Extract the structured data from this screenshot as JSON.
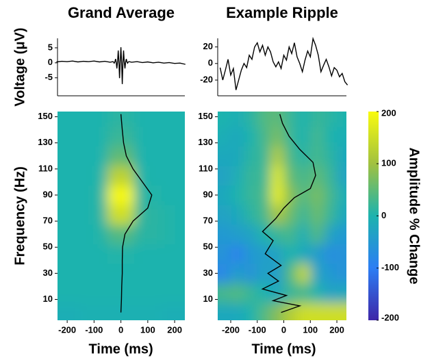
{
  "chart_data": [
    {
      "type": "line",
      "title": "Grand Average",
      "ylabel": "Voltage (μV)",
      "color": "#000000",
      "xlim": [
        -236,
        238
      ],
      "ylim": [
        -11,
        10
      ],
      "yticks": [
        -5,
        0,
        5
      ],
      "x": [
        -240,
        -220,
        -200,
        -180,
        -160,
        -140,
        -120,
        -100,
        -80,
        -60,
        -40,
        -30,
        -27.5,
        -25,
        -22.5,
        -20,
        -17.5,
        -15,
        -12.5,
        -10,
        -7.5,
        -5,
        -2.5,
        0,
        2.5,
        5,
        7.5,
        10,
        12.5,
        15,
        17.5,
        20,
        22.5,
        25,
        27.5,
        30,
        40,
        60,
        80,
        100,
        120,
        140,
        160,
        180,
        200,
        220,
        240
      ],
      "values": [
        0.3,
        0.5,
        0.4,
        0.6,
        0.3,
        0.5,
        0.4,
        0.6,
        0.3,
        0.5,
        0.2,
        0.4,
        0.3,
        -0.1,
        0.3,
        1.3,
        0.3,
        -1.9,
        0.3,
        4.1,
        0.3,
        -5.1,
        0.3,
        5.2,
        0.3,
        -7.1,
        0.3,
        4.1,
        0.3,
        -1.9,
        0.3,
        1.3,
        0.3,
        -0.1,
        0.3,
        0.4,
        0.2,
        0.4,
        0.1,
        0.3,
        0.0,
        0.2,
        -0.1,
        0.1,
        -0.2,
        -0.1,
        -0.5
      ]
    },
    {
      "type": "line",
      "title": "Example Ripple",
      "color": "#000000",
      "xlim": [
        -249,
        236
      ],
      "ylim": [
        -39,
        37
      ],
      "yticks": [
        -20,
        0,
        20
      ],
      "x": [
        -240,
        -230,
        -220,
        -210,
        -200,
        -190,
        -180,
        -170,
        -160,
        -150,
        -140,
        -130,
        -120,
        -110,
        -100,
        -90,
        -80,
        -70,
        -60,
        -50,
        -40,
        -30,
        -20,
        -10,
        0,
        10,
        20,
        30,
        40,
        50,
        60,
        70,
        80,
        90,
        100,
        110,
        120,
        130,
        140,
        150,
        160,
        170,
        180,
        190,
        200,
        210,
        220,
        230,
        240
      ],
      "values": [
        -5,
        -20,
        -8,
        5,
        -14,
        -6,
        -32,
        -20,
        -8,
        0,
        -5,
        10,
        5,
        20,
        25,
        14,
        22,
        10,
        20,
        14,
        2,
        -4,
        2,
        -6,
        10,
        4,
        20,
        12,
        25,
        8,
        0,
        -10,
        4,
        15,
        8,
        30,
        22,
        10,
        -10,
        -2,
        5,
        -4,
        -15,
        -5,
        -8,
        -16,
        -12,
        -22,
        -26
      ]
    },
    {
      "type": "heatmap",
      "ylabel": "Frequency (Hz)",
      "xlabel": "Time (ms)",
      "xlim": [
        -236,
        238
      ],
      "ylim": [
        -6,
        154
      ],
      "xticks": [
        -200,
        -100,
        0,
        100,
        200
      ],
      "yticks": [
        10,
        30,
        50,
        70,
        90,
        110,
        130,
        150
      ],
      "x": [
        -225,
        -175,
        -125,
        -75,
        -25,
        25,
        75,
        125,
        175,
        225
      ],
      "y": [
        0,
        15,
        30,
        45,
        60,
        75,
        90,
        105,
        120,
        135,
        150
      ],
      "z": [
        [
          -10,
          -10,
          -5,
          -5,
          -5,
          -5,
          -5,
          -5,
          -10,
          -10
        ],
        [
          0,
          0,
          0,
          0,
          0,
          0,
          0,
          0,
          0,
          0
        ],
        [
          0,
          0,
          0,
          0,
          0,
          0,
          0,
          0,
          0,
          0
        ],
        [
          0,
          0,
          0,
          0,
          5,
          5,
          0,
          0,
          0,
          0
        ],
        [
          0,
          0,
          0,
          5,
          40,
          40,
          10,
          10,
          5,
          0
        ],
        [
          0,
          0,
          0,
          10,
          150,
          150,
          15,
          10,
          5,
          0
        ],
        [
          0,
          0,
          0,
          10,
          195,
          195,
          10,
          5,
          0,
          0
        ],
        [
          0,
          0,
          0,
          5,
          130,
          130,
          5,
          0,
          0,
          0
        ],
        [
          0,
          0,
          0,
          0,
          50,
          50,
          0,
          0,
          0,
          0
        ],
        [
          0,
          0,
          0,
          0,
          20,
          20,
          0,
          0,
          0,
          0
        ],
        [
          0,
          0,
          0,
          0,
          10,
          10,
          0,
          0,
          0,
          0
        ]
      ],
      "curve_x": [
        0,
        2,
        3,
        5,
        5,
        6,
        15,
        45,
        100,
        115,
        80,
        45,
        20,
        10,
        5,
        0
      ],
      "curve_y": [
        0,
        10,
        20,
        30,
        40,
        50,
        60,
        70,
        80,
        90,
        100,
        110,
        120,
        130,
        140,
        152
      ]
    },
    {
      "type": "heatmap",
      "xlabel": "Time (ms)",
      "xlim": [
        -249,
        236
      ],
      "ylim": [
        -6,
        154
      ],
      "xticks": [
        -200,
        -100,
        0,
        100,
        200
      ],
      "yticks": [
        10,
        30,
        50,
        70,
        90,
        110,
        130,
        150
      ],
      "x": [
        -225,
        -175,
        -125,
        -75,
        -25,
        25,
        75,
        125,
        175,
        225
      ],
      "y": [
        0,
        15,
        30,
        45,
        60,
        75,
        90,
        105,
        120,
        135,
        150
      ],
      "z": [
        [
          -20,
          -20,
          0,
          40,
          80,
          120,
          150,
          150,
          150,
          150
        ],
        [
          30,
          40,
          20,
          0,
          -20,
          20,
          30,
          0,
          -30,
          -20
        ],
        [
          -80,
          -40,
          -60,
          -30,
          -40,
          40,
          140,
          -30,
          -50,
          -60
        ],
        [
          -60,
          -90,
          -50,
          -40,
          -30,
          0,
          -20,
          -40,
          -70,
          -60
        ],
        [
          -50,
          -40,
          -30,
          0,
          20,
          30,
          -10,
          40,
          -30,
          -50
        ],
        [
          -30,
          -20,
          10,
          30,
          110,
          60,
          20,
          60,
          20,
          -20
        ],
        [
          -20,
          0,
          20,
          30,
          180,
          80,
          40,
          70,
          30,
          -10
        ],
        [
          -30,
          -10,
          20,
          20,
          170,
          50,
          30,
          50,
          20,
          -30
        ],
        [
          -20,
          -20,
          10,
          20,
          120,
          30,
          10,
          30,
          10,
          -20
        ],
        [
          -10,
          -20,
          0,
          30,
          70,
          20,
          0,
          30,
          0,
          -10
        ],
        [
          0,
          -10,
          10,
          40,
          50,
          20,
          0,
          20,
          10,
          0
        ]
      ],
      "curve_x": [
        -10,
        60,
        -40,
        10,
        -80,
        -20,
        -60,
        -10,
        -70,
        -40,
        -80,
        -30,
        0,
        40,
        100,
        120,
        110,
        60,
        20,
        -5,
        -15
      ],
      "curve_y": [
        0,
        5,
        9,
        13,
        18,
        24,
        30,
        36,
        45,
        55,
        62,
        72,
        80,
        88,
        95,
        105,
        115,
        125,
        135,
        145,
        152
      ]
    },
    {
      "type": "colorbar",
      "label": "Amplitude % Change",
      "zlim": [
        -200,
        200
      ],
      "zticks": [
        -200,
        -100,
        0,
        100,
        200
      ],
      "colors": [
        "#3e26a8",
        "#2c7ef4",
        "#1cb3ae",
        "#a1c140",
        "#f9fb0e"
      ]
    }
  ]
}
